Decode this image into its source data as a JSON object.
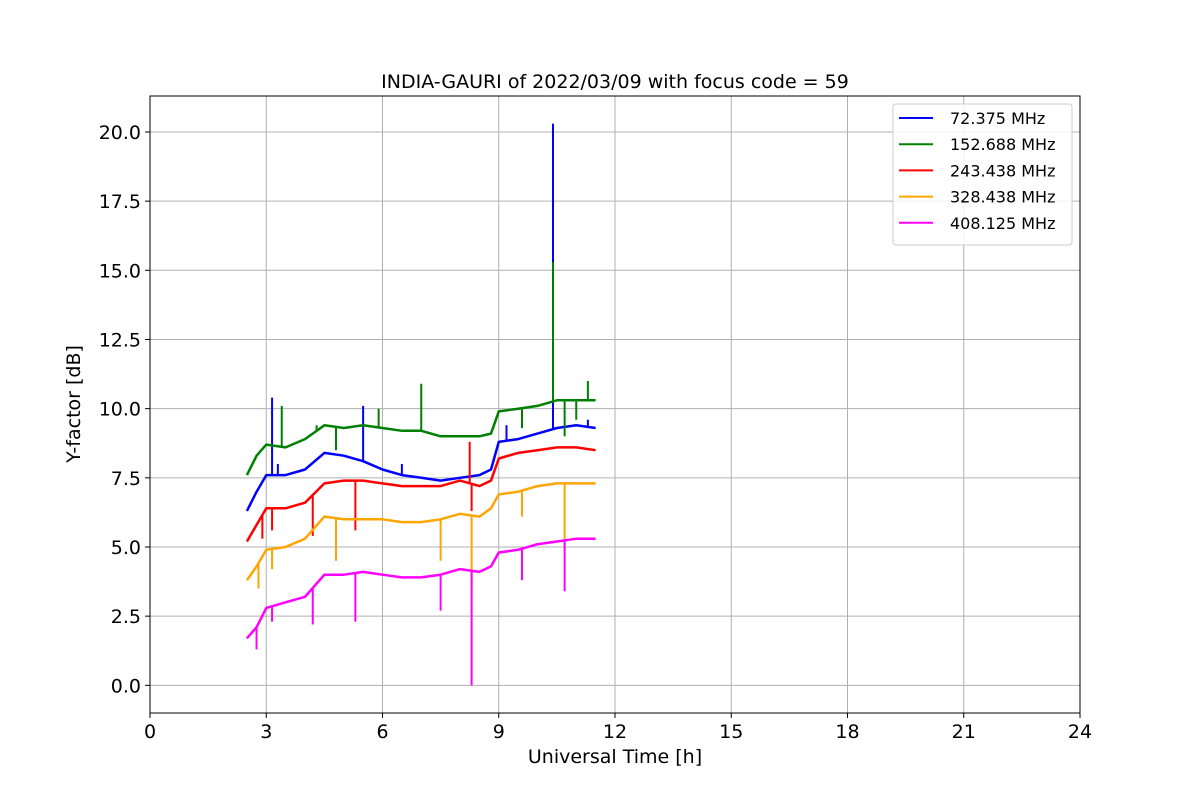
{
  "chart_data": {
    "type": "line",
    "title": "INDIA-GAURI of 2022/03/09 with focus code = 59",
    "xlabel": "Universal Time [h]",
    "ylabel": "Y-factor [dB]",
    "xlim": [
      0,
      24
    ],
    "ylim": [
      -1.0,
      21.3
    ],
    "x_ticks": [
      0,
      3,
      6,
      9,
      12,
      15,
      18,
      21,
      24
    ],
    "x_tick_labels": [
      "0",
      "3",
      "6",
      "9",
      "12",
      "15",
      "18",
      "21",
      "24"
    ],
    "y_ticks": [
      0.0,
      2.5,
      5.0,
      7.5,
      10.0,
      12.5,
      15.0,
      17.5,
      20.0
    ],
    "y_tick_labels": [
      "0.0",
      "2.5",
      "5.0",
      "7.5",
      "10.0",
      "12.5",
      "15.0",
      "17.5",
      "20.0"
    ],
    "grid": true,
    "legend_position": "top-right",
    "series": [
      {
        "name": " 72.375 MHz",
        "color": "#0000ff",
        "x": [
          2.5,
          2.75,
          3.0,
          3.5,
          4.0,
          4.5,
          5.0,
          5.5,
          6.0,
          6.5,
          7.0,
          7.5,
          8.0,
          8.5,
          8.8,
          9.0,
          9.5,
          10.0,
          10.5,
          11.0,
          11.5
        ],
        "y": [
          6.3,
          7.0,
          7.6,
          7.6,
          7.8,
          8.4,
          8.3,
          8.1,
          7.8,
          7.6,
          7.5,
          7.4,
          7.5,
          7.6,
          7.8,
          8.8,
          8.9,
          9.1,
          9.3,
          9.4,
          9.3
        ],
        "spikes": [
          [
            3.15,
            10.4
          ],
          [
            3.3,
            8.0
          ],
          [
            5.5,
            10.1
          ],
          [
            6.5,
            8.0
          ],
          [
            9.2,
            9.4
          ],
          [
            10.4,
            20.3
          ],
          [
            11.3,
            9.6
          ]
        ]
      },
      {
        "name": "152.688 MHz",
        "color": "#008000",
        "x": [
          2.5,
          2.75,
          3.0,
          3.5,
          4.0,
          4.5,
          5.0,
          5.5,
          6.0,
          6.5,
          7.0,
          7.5,
          8.0,
          8.5,
          8.8,
          9.0,
          9.5,
          10.0,
          10.5,
          11.0,
          11.5
        ],
        "y": [
          7.6,
          8.3,
          8.7,
          8.6,
          8.9,
          9.4,
          9.3,
          9.4,
          9.3,
          9.2,
          9.2,
          9.0,
          9.0,
          9.0,
          9.1,
          9.9,
          10.0,
          10.1,
          10.3,
          10.3,
          10.3
        ],
        "spikes": [
          [
            3.4,
            10.1
          ],
          [
            4.3,
            9.4
          ],
          [
            5.9,
            10.0
          ],
          [
            7.0,
            10.9
          ],
          [
            10.4,
            15.3
          ],
          [
            11.3,
            11.0
          ]
        ],
        "dips": [
          [
            4.8,
            8.5
          ],
          [
            9.6,
            9.3
          ],
          [
            10.7,
            9.0
          ],
          [
            11.0,
            9.6
          ]
        ]
      },
      {
        "name": "243.438 MHz",
        "color": "#ff0000",
        "x": [
          2.5,
          2.75,
          3.0,
          3.5,
          4.0,
          4.5,
          5.0,
          5.5,
          6.0,
          6.5,
          7.0,
          7.5,
          8.0,
          8.5,
          8.8,
          9.0,
          9.5,
          10.0,
          10.5,
          11.0,
          11.5
        ],
        "y": [
          5.2,
          5.8,
          6.4,
          6.4,
          6.6,
          7.3,
          7.4,
          7.4,
          7.3,
          7.2,
          7.2,
          7.2,
          7.4,
          7.2,
          7.4,
          8.2,
          8.4,
          8.5,
          8.6,
          8.6,
          8.5
        ],
        "spikes": [
          [
            8.25,
            8.8
          ]
        ],
        "dips": [
          [
            2.9,
            5.3
          ],
          [
            3.15,
            5.6
          ],
          [
            4.2,
            5.4
          ],
          [
            5.3,
            5.6
          ],
          [
            8.3,
            6.3
          ]
        ]
      },
      {
        "name": "328.438 MHz",
        "color": "#ffa500",
        "x": [
          2.5,
          2.75,
          3.0,
          3.5,
          4.0,
          4.5,
          5.0,
          5.5,
          6.0,
          6.5,
          7.0,
          7.5,
          8.0,
          8.5,
          8.8,
          9.0,
          9.5,
          10.0,
          10.5,
          11.0,
          11.5
        ],
        "y": [
          3.8,
          4.3,
          4.9,
          5.0,
          5.3,
          6.1,
          6.0,
          6.0,
          6.0,
          5.9,
          5.9,
          6.0,
          6.2,
          6.1,
          6.4,
          6.9,
          7.0,
          7.2,
          7.3,
          7.3,
          7.3
        ],
        "dips": [
          [
            2.8,
            3.5
          ],
          [
            3.15,
            4.2
          ],
          [
            4.8,
            4.5
          ],
          [
            7.5,
            4.5
          ],
          [
            8.3,
            3.6
          ],
          [
            9.6,
            6.1
          ],
          [
            10.7,
            4.9
          ]
        ]
      },
      {
        "name": "408.125 MHz",
        "color": "#ff00ff",
        "x": [
          2.5,
          2.75,
          3.0,
          3.5,
          4.0,
          4.5,
          5.0,
          5.5,
          6.0,
          6.5,
          7.0,
          7.5,
          8.0,
          8.5,
          8.8,
          9.0,
          9.5,
          10.0,
          10.5,
          11.0,
          11.5
        ],
        "y": [
          1.7,
          2.1,
          2.8,
          3.0,
          3.2,
          4.0,
          4.0,
          4.1,
          4.0,
          3.9,
          3.9,
          4.0,
          4.2,
          4.1,
          4.3,
          4.8,
          4.9,
          5.1,
          5.2,
          5.3,
          5.3
        ],
        "dips": [
          [
            2.75,
            1.3
          ],
          [
            3.15,
            2.3
          ],
          [
            4.2,
            2.2
          ],
          [
            5.3,
            2.3
          ],
          [
            7.5,
            2.7
          ],
          [
            8.3,
            0.0
          ],
          [
            9.6,
            3.8
          ],
          [
            10.7,
            3.4
          ]
        ]
      }
    ]
  }
}
